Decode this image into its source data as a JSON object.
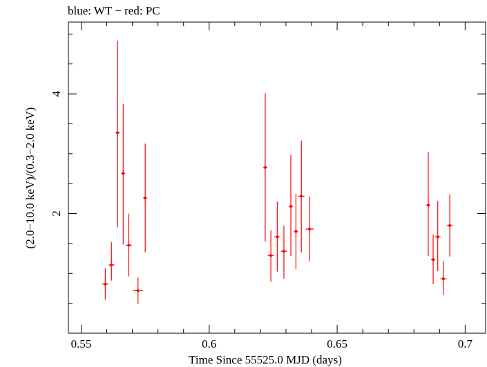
{
  "chart_data": {
    "type": "scatter",
    "title": "blue: WT − red: PC",
    "xlabel": "Time Since 55525.0 MJD (days)",
    "ylabel": "(2.0−10.0 keV)/(0.3−2.0 keV)",
    "xlim": [
      0.545,
      0.708
    ],
    "ylim": [
      0,
      5.2
    ],
    "x_ticks": [
      0.55,
      0.6,
      0.65,
      0.7
    ],
    "x_tick_labels": [
      "0.55",
      "0.6",
      "0.65",
      "0.7"
    ],
    "y_ticks": [
      2,
      4
    ],
    "y_tick_labels": [
      "2",
      "4"
    ],
    "series": [
      {
        "name": "PC",
        "color": "#ff0000",
        "points": [
          {
            "x": 0.5594,
            "y": 0.82,
            "xerr": 0.0012,
            "ylo": 0.56,
            "yhi": 1.08
          },
          {
            "x": 0.5618,
            "y": 1.14,
            "xerr": 0.0012,
            "ylo": 0.88,
            "yhi": 1.52
          },
          {
            "x": 0.5642,
            "y": 3.35,
            "xerr": 0.0008,
            "ylo": 1.77,
            "yhi": 4.89
          },
          {
            "x": 0.5664,
            "y": 2.67,
            "xerr": 0.0008,
            "ylo": 1.48,
            "yhi": 3.83
          },
          {
            "x": 0.5686,
            "y": 1.47,
            "xerr": 0.0012,
            "ylo": 0.95,
            "yhi": 2.0
          },
          {
            "x": 0.5722,
            "y": 0.71,
            "xerr": 0.002,
            "ylo": 0.49,
            "yhi": 0.93
          },
          {
            "x": 0.575,
            "y": 2.26,
            "xerr": 0.0008,
            "ylo": 1.35,
            "yhi": 3.17
          },
          {
            "x": 0.6219,
            "y": 2.77,
            "xerr": 0.0008,
            "ylo": 1.53,
            "yhi": 4.01
          },
          {
            "x": 0.6241,
            "y": 1.3,
            "xerr": 0.0012,
            "ylo": 0.86,
            "yhi": 1.72
          },
          {
            "x": 0.6266,
            "y": 1.61,
            "xerr": 0.0012,
            "ylo": 1.03,
            "yhi": 2.2
          },
          {
            "x": 0.6292,
            "y": 1.37,
            "xerr": 0.0012,
            "ylo": 0.91,
            "yhi": 1.8
          },
          {
            "x": 0.6319,
            "y": 2.12,
            "xerr": 0.0008,
            "ylo": 1.29,
            "yhi": 2.98
          },
          {
            "x": 0.6339,
            "y": 1.7,
            "xerr": 0.0008,
            "ylo": 1.07,
            "yhi": 2.33
          },
          {
            "x": 0.636,
            "y": 2.29,
            "xerr": 0.0012,
            "ylo": 1.35,
            "yhi": 3.22
          },
          {
            "x": 0.6392,
            "y": 1.74,
            "xerr": 0.0016,
            "ylo": 1.2,
            "yhi": 2.28
          },
          {
            "x": 0.6856,
            "y": 2.14,
            "xerr": 0.0008,
            "ylo": 1.29,
            "yhi": 3.03
          },
          {
            "x": 0.6875,
            "y": 1.23,
            "xerr": 0.0008,
            "ylo": 0.82,
            "yhi": 1.65
          },
          {
            "x": 0.6893,
            "y": 1.61,
            "xerr": 0.0012,
            "ylo": 1.04,
            "yhi": 2.21
          },
          {
            "x": 0.6915,
            "y": 0.91,
            "xerr": 0.0012,
            "ylo": 0.64,
            "yhi": 1.2
          },
          {
            "x": 0.694,
            "y": 1.8,
            "xerr": 0.0012,
            "ylo": 1.28,
            "yhi": 2.32
          }
        ]
      }
    ]
  }
}
